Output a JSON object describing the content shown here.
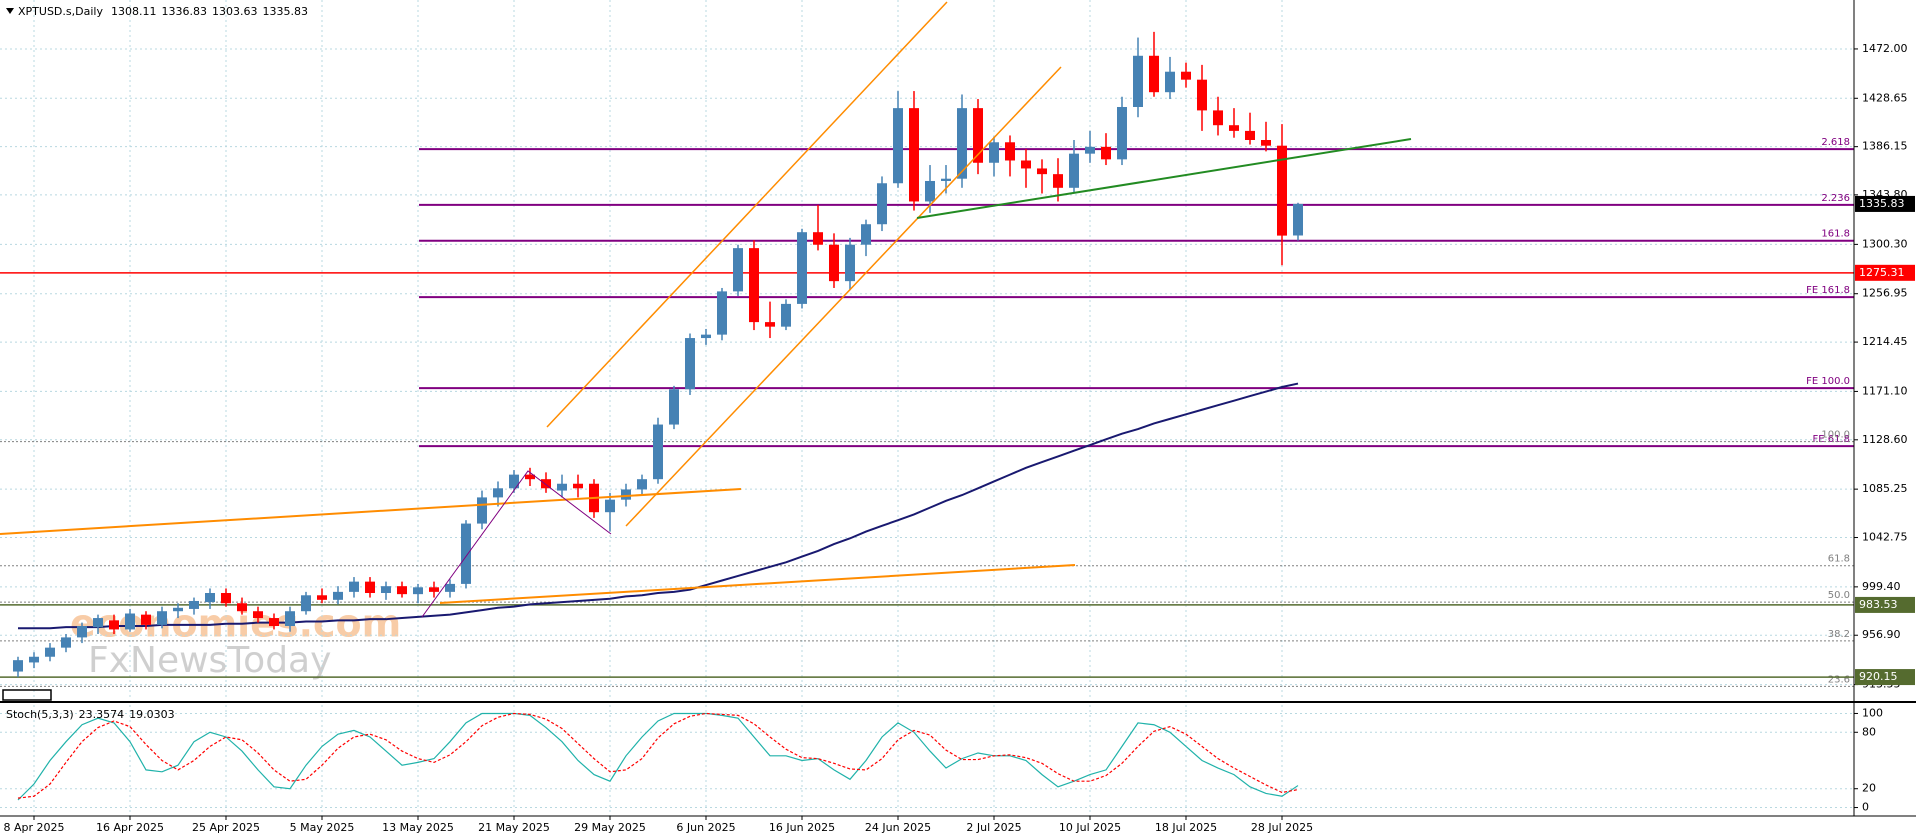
{
  "chart_data": [
    {
      "type": "candlestick",
      "symbol": "XPTUSD.s,Daily",
      "header_values": [
        1308.11,
        1336.83,
        1303.63,
        1335.83
      ],
      "categories": [
        null,
        "8 Apr 2025",
        null,
        null,
        null,
        null,
        null,
        "16 Apr 2025",
        null,
        null,
        null,
        null,
        null,
        "25 Apr 2025",
        null,
        null,
        null,
        null,
        null,
        "5 May 2025",
        null,
        null,
        null,
        null,
        null,
        "13 May 2025",
        null,
        null,
        null,
        null,
        null,
        "21 May 2025",
        null,
        null,
        null,
        null,
        null,
        "29 May 2025",
        null,
        null,
        null,
        null,
        null,
        "6 Jun 2025",
        null,
        null,
        null,
        null,
        null,
        "16 Jun 2025",
        null,
        null,
        null,
        null,
        null,
        "24 Jun 2025",
        null,
        null,
        null,
        null,
        null,
        "2 Jul 2025",
        null,
        null,
        null,
        null,
        null,
        "10 Jul 2025",
        null,
        null,
        null,
        null,
        null,
        "18 Jul 2025",
        null,
        null,
        null,
        null,
        null,
        "28 Jul 2025",
        null
      ],
      "open": [
        925,
        933,
        938,
        946,
        955,
        964,
        970,
        962,
        975,
        966,
        978,
        980,
        986,
        994,
        985,
        978,
        972,
        965,
        978,
        992,
        988,
        995,
        1004,
        994,
        1000,
        993,
        999,
        995,
        1002,
        1055,
        1078,
        1086,
        1098,
        1094,
        1084,
        1090,
        1090,
        1065,
        1076,
        1085,
        1094,
        1142,
        1173,
        1218,
        1221,
        1259,
        1297,
        1232,
        1228,
        1248,
        1311,
        1300,
        1268,
        1300,
        1318,
        1354,
        1420,
        1338,
        1356,
        1358,
        1420,
        1372,
        1390,
        1374,
        1367,
        1362,
        1350,
        1380,
        1386,
        1375,
        1421,
        1466,
        1434,
        1452,
        1445,
        1418,
        1405,
        1400,
        1392,
        1387,
        1308.11
      ],
      "high": [
        938,
        942,
        950,
        958,
        968,
        975,
        975,
        980,
        978,
        982,
        985,
        990,
        998,
        998,
        990,
        982,
        976,
        982,
        995,
        998,
        1000,
        1008,
        1008,
        1004,
        1004,
        1002,
        1004,
        1006,
        1058,
        1084,
        1092,
        1102,
        1104,
        1100,
        1098,
        1098,
        1094,
        1082,
        1090,
        1098,
        1148,
        1176,
        1222,
        1226,
        1262,
        1300,
        1304,
        1250,
        1252,
        1314,
        1335,
        1310,
        1306,
        1322,
        1360,
        1435,
        1435,
        1370,
        1370,
        1432,
        1428,
        1395,
        1396,
        1384,
        1375,
        1376,
        1392,
        1400,
        1398,
        1430,
        1482,
        1487,
        1465,
        1460,
        1458,
        1430,
        1420,
        1416,
        1408,
        1406,
        1336.83
      ],
      "low": [
        920,
        928,
        934,
        942,
        950,
        958,
        958,
        960,
        962,
        963,
        972,
        975,
        980,
        982,
        975,
        968,
        962,
        960,
        975,
        985,
        984,
        990,
        990,
        988,
        990,
        985,
        990,
        990,
        998,
        1050,
        1070,
        1082,
        1088,
        1082,
        1078,
        1078,
        1060,
        1048,
        1070,
        1080,
        1090,
        1138,
        1168,
        1212,
        1216,
        1255,
        1225,
        1218,
        1225,
        1244,
        1295,
        1262,
        1260,
        1290,
        1312,
        1350,
        1330,
        1328,
        1345,
        1350,
        1362,
        1360,
        1360,
        1350,
        1345,
        1338,
        1346,
        1372,
        1370,
        1370,
        1412,
        1430,
        1428,
        1438,
        1400,
        1396,
        1394,
        1388,
        1382,
        1282,
        1303.63
      ],
      "close": [
        935,
        938,
        946,
        955,
        965,
        972,
        962,
        976,
        966,
        978,
        981,
        987,
        994,
        985,
        978,
        972,
        965,
        978,
        992,
        988,
        995,
        1004,
        994,
        1000,
        993,
        999,
        995,
        1002,
        1055,
        1078,
        1086,
        1098,
        1094,
        1086,
        1090,
        1086,
        1065,
        1076,
        1085,
        1094,
        1142,
        1173,
        1218,
        1221,
        1259,
        1297,
        1232,
        1228,
        1248,
        1311,
        1300,
        1268,
        1300,
        1318,
        1354,
        1420,
        1338,
        1356,
        1358,
        1420,
        1372,
        1390,
        1374,
        1367,
        1362,
        1350,
        1380,
        1386,
        1375,
        1421,
        1466,
        1434,
        1452,
        1445,
        1418,
        1405,
        1400,
        1392,
        1387,
        1308,
        1335.83
      ],
      "up_color": "#4682b4",
      "down_color": "#ff0000",
      "ylim": [
        900,
        1515
      ],
      "yticks": [
        {
          "value": 1472,
          "label": "1472.00"
        },
        {
          "value": 1428.65,
          "label": "1428.65"
        },
        {
          "value": 1386.15,
          "label": "1386.15"
        },
        {
          "value": 1343.8,
          "label": "1343.80"
        },
        {
          "value": 1300.3,
          "label": "1300.30"
        },
        {
          "value": 1256.95,
          "label": "1256.95"
        },
        {
          "value": 1214.45,
          "label": "1214.45"
        },
        {
          "value": 1171.1,
          "label": "1171.10"
        },
        {
          "value": 1128.6,
          "label": "1128.60"
        },
        {
          "value": 1085.25,
          "label": "1085.25"
        },
        {
          "value": 1042.75,
          "label": "1042.75"
        },
        {
          "value": 999.4,
          "label": "999.40"
        },
        {
          "value": 956.9,
          "label": "956.90"
        },
        {
          "value": 913.55,
          "label": "913.55"
        }
      ],
      "grid": true,
      "moving_average": {
        "color": "#191970",
        "values": [
          963,
          963,
          963,
          964,
          964,
          964,
          965,
          965,
          965,
          966,
          966,
          966,
          966,
          967,
          967,
          968,
          968,
          968,
          969,
          969,
          970,
          970,
          971,
          971,
          972,
          973,
          974,
          975,
          977,
          979,
          981,
          982,
          984,
          985,
          986,
          987,
          988,
          989,
          991,
          992,
          994,
          995,
          997,
          1001,
          1005,
          1009,
          1013,
          1017,
          1021,
          1026,
          1031,
          1037,
          1042,
          1048,
          1053,
          1058,
          1063,
          1069,
          1075,
          1080,
          1086,
          1092,
          1098,
          1104,
          1109,
          1114,
          1119,
          1124,
          1129,
          1134,
          1138,
          1143,
          1147,
          1151,
          1155,
          1159,
          1163,
          1167,
          1171,
          1175,
          1178
        ]
      },
      "levels": [
        {
          "name": "2.618",
          "price": 1384,
          "color": "#800080",
          "style": "solid"
        },
        {
          "name": "2.236",
          "price": 1335,
          "color": "#800080",
          "style": "solid"
        },
        {
          "name": "161.8",
          "price": 1303.5,
          "color": "#800080",
          "style": "solid"
        },
        {
          "name": "FE 161.8",
          "price": 1254,
          "color": "#800080",
          "style": "solid"
        },
        {
          "name": "FE 100.0",
          "price": 1174,
          "color": "#800080",
          "style": "solid"
        },
        {
          "name": "FE 61.8",
          "price": 1123,
          "color": "#800080",
          "style": "solid"
        },
        {
          "name": "100.0",
          "price": 1127,
          "color": "#808080",
          "style": "dotted"
        },
        {
          "name": "61.8",
          "price": 1018,
          "color": "#808080",
          "style": "dotted"
        },
        {
          "name": "50.0",
          "price": 986,
          "color": "#808080",
          "style": "dotted"
        },
        {
          "name": "38.2",
          "price": 952,
          "color": "#808080",
          "style": "dotted"
        },
        {
          "name": "23.6",
          "price": 912,
          "color": "#808080",
          "style": "dotted"
        }
      ],
      "price_tags": [
        {
          "value": 1335.83,
          "color": "#000000",
          "line": false
        },
        {
          "value": 1275.31,
          "color": "#ff0000",
          "line": true
        },
        {
          "value": 983.53,
          "color": "#556b2f",
          "line": true
        },
        {
          "value": 920.15,
          "color": "#556b2f",
          "line": true
        }
      ],
      "watermarks": [
        "economies.com",
        "FxNewsToday"
      ]
    },
    {
      "type": "line",
      "title": "Stoch(5,3,3)",
      "ylim": [
        -9,
        109
      ],
      "yticks": [
        0,
        20,
        80,
        100
      ],
      "series": [
        {
          "color": "#20b2aa",
          "values": [
            8,
            25,
            50,
            70,
            88,
            95,
            90,
            70,
            40,
            38,
            45,
            70,
            80,
            75,
            60,
            40,
            22,
            20,
            45,
            65,
            78,
            82,
            75,
            60,
            45,
            48,
            52,
            70,
            90,
            100,
            100,
            100,
            98,
            85,
            70,
            50,
            35,
            28,
            55,
            75,
            92,
            100,
            100,
            100,
            98,
            95,
            75,
            55,
            55,
            50,
            52,
            40,
            30,
            50,
            75,
            90,
            80,
            60,
            42,
            52,
            58,
            55,
            55,
            50,
            35,
            22,
            28,
            35,
            40,
            65,
            90,
            88,
            80,
            65,
            50,
            42,
            35,
            22,
            15,
            12,
            23.3574
          ]
        },
        {
          "color": "#ff0000",
          "dash": true,
          "values": [
            10,
            12,
            25,
            48,
            70,
            85,
            92,
            86,
            67,
            50,
            40,
            50,
            65,
            75,
            72,
            58,
            40,
            28,
            30,
            45,
            63,
            75,
            78,
            72,
            60,
            52,
            48,
            56,
            70,
            87,
            96,
            100,
            99,
            94,
            84,
            68,
            52,
            38,
            40,
            52,
            74,
            89,
            97,
            100,
            99,
            98,
            89,
            75,
            62,
            53,
            52,
            47,
            41,
            40,
            52,
            72,
            82,
            77,
            61,
            51,
            51,
            55,
            56,
            53,
            47,
            36,
            28,
            28,
            34,
            47,
            65,
            81,
            86,
            78,
            65,
            52,
            42,
            33,
            24,
            16,
            19.0303
          ]
        }
      ]
    }
  ]
}
